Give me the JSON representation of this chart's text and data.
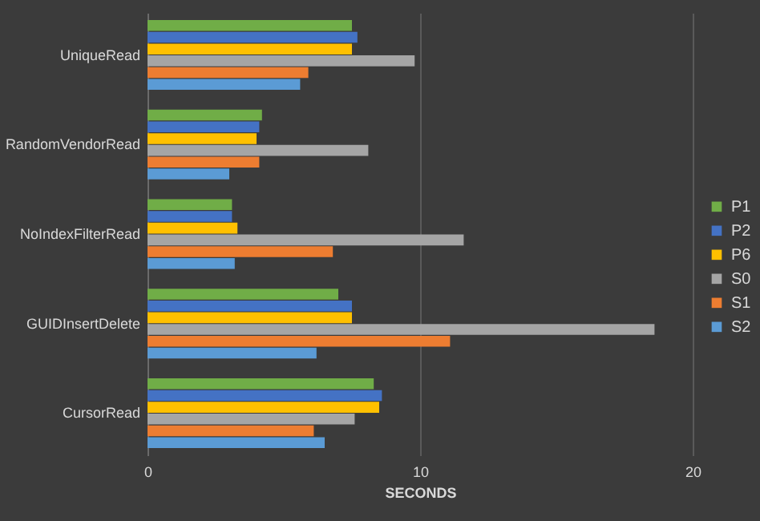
{
  "chart_data": {
    "type": "bar",
    "orientation": "horizontal",
    "xlabel": "SECONDS",
    "categories": [
      "UniqueRead",
      "RandomVendorRead",
      "NoIndexFilterRead",
      "GUIDInsertDelete",
      "CursorRead"
    ],
    "series": [
      {
        "name": "P1",
        "color": "#70ad47",
        "values": [
          7.5,
          4.2,
          3.1,
          7.0,
          8.3
        ]
      },
      {
        "name": "P2",
        "color": "#4472c4",
        "values": [
          7.7,
          4.1,
          3.1,
          7.5,
          8.6
        ]
      },
      {
        "name": "P6",
        "color": "#ffc000",
        "values": [
          7.5,
          4.0,
          3.3,
          7.5,
          8.5
        ]
      },
      {
        "name": "S0",
        "color": "#a5a5a5",
        "values": [
          9.8,
          8.1,
          11.6,
          18.6,
          7.6
        ]
      },
      {
        "name": "S1",
        "color": "#ed7d31",
        "values": [
          5.9,
          4.1,
          6.8,
          11.1,
          6.1
        ]
      },
      {
        "name": "S2",
        "color": "#5b9bd5",
        "values": [
          5.6,
          3.0,
          3.2,
          6.2,
          6.5
        ]
      }
    ],
    "xlim": [
      0,
      20
    ],
    "xticks": [
      0,
      10,
      20
    ],
    "grid": "x",
    "legend": "right"
  }
}
